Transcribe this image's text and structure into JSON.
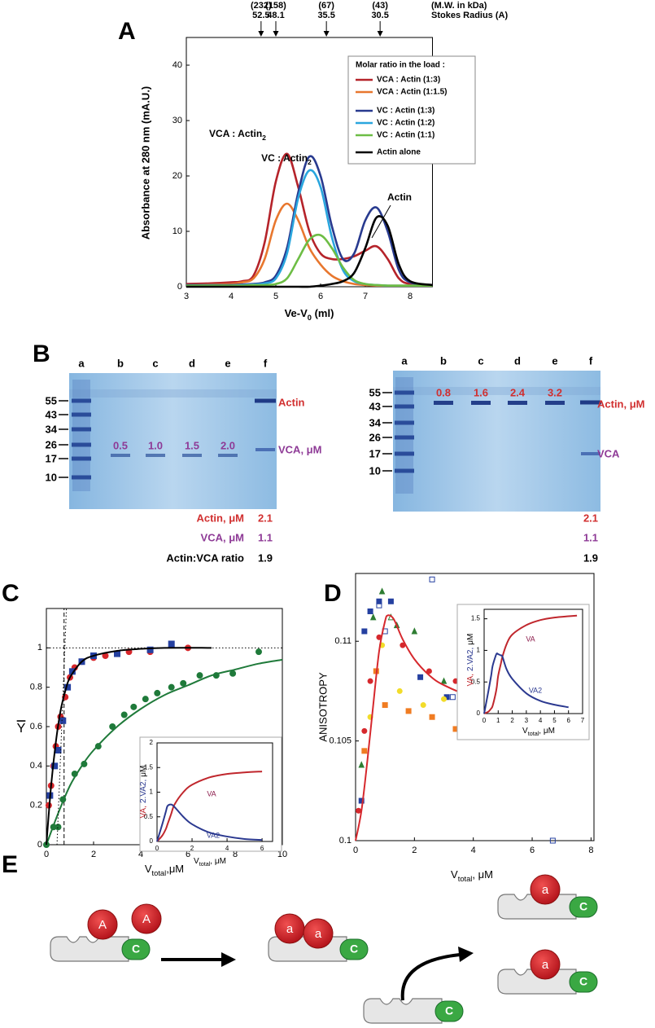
{
  "panel_labels": [
    "A",
    "B",
    "C",
    "D",
    "E"
  ],
  "chart_data": [
    {
      "type": "line",
      "xlabel": [
        "Ve-V",
        "0",
        " (ml)"
      ],
      "ylabel": "Absorbance at 280 nm  (mA.U.)",
      "top_axis_title": [
        "(M.W. in kDa)",
        "Stokes Radius (A)"
      ],
      "top_ticks": [
        {
          "value": 4.67,
          "label": [
            "(232)",
            "52.5"
          ]
        },
        {
          "value": 5.0,
          "label": [
            "(158)",
            "48.1"
          ]
        },
        {
          "value": 6.13,
          "label": [
            "(67)",
            "35.5"
          ]
        },
        {
          "value": 7.33,
          "label": [
            "(43)",
            "30.5"
          ]
        }
      ],
      "xlim": [
        3,
        8.5
      ],
      "ylim": [
        0,
        45
      ],
      "xticks": [
        3,
        4,
        5,
        6,
        7,
        8
      ],
      "yticks": [
        0,
        10,
        20,
        30,
        40
      ],
      "legend": {
        "title": "Molar ratio in the load :",
        "position": "upper right"
      },
      "x": [
        3,
        3.5,
        4,
        4.25,
        4.5,
        4.75,
        5,
        5.25,
        5.5,
        5.75,
        6,
        6.25,
        6.5,
        6.75,
        7,
        7.25,
        7.5,
        7.75,
        8,
        8.5
      ],
      "series": [
        {
          "name": "VCA : Actin (1:3)",
          "color": "#b5232a",
          "values": [
            0.5,
            0.6,
            0.8,
            1,
            2,
            8,
            19,
            24,
            18,
            10,
            6,
            5,
            5,
            5.5,
            6.5,
            7.3,
            5,
            1.5,
            0.5,
            0.3
          ]
        },
        {
          "name": "VCA : Actin (1:1.5)",
          "color": "#e8772e",
          "values": [
            0.3,
            0.4,
            0.5,
            0.8,
            1.5,
            5,
            12,
            15,
            12,
            7,
            4,
            2,
            1,
            0.5,
            0.3,
            0.2,
            0.2,
            0.2,
            0.2,
            0.2
          ]
        },
        {
          "name": "VC : Actin (1:3)",
          "color": "#283a8f",
          "values": [
            0.3,
            0.3,
            0.3,
            0.4,
            0.5,
            0.8,
            2,
            7,
            17,
            23.5,
            20,
            11,
            5,
            6,
            12,
            14.3,
            10,
            3,
            0.8,
            0.3
          ]
        },
        {
          "name": "VC : Actin (1:2)",
          "color": "#2aa6de",
          "values": [
            0.2,
            0.2,
            0.2,
            0.3,
            0.4,
            0.6,
            1.5,
            6,
            16,
            21,
            18,
            9,
            3,
            1,
            0.5,
            0.3,
            0.2,
            0.2,
            0.2,
            0.2
          ]
        },
        {
          "name": "VC : Actin (1:1)",
          "color": "#6dbd45",
          "values": [
            0.2,
            0.2,
            0.2,
            0.2,
            0.3,
            0.3,
            0.5,
            1.5,
            5,
            8.5,
            9.3,
            7,
            3.5,
            1.2,
            0.5,
            0.3,
            0.2,
            0.2,
            0.2,
            0.2
          ]
        },
        {
          "name": "Actin alone",
          "color": "#000000",
          "values": [
            0,
            0,
            0,
            0,
            0,
            0,
            0,
            0,
            0,
            0,
            0.2,
            0.5,
            1,
            2.5,
            7,
            12.5,
            11,
            4,
            1,
            0.3
          ]
        }
      ],
      "annotations": [
        {
          "text": [
            "VCA : Actin",
            "2"
          ]
        },
        {
          "text": [
            "VC : Actin",
            "2"
          ]
        },
        {
          "text": "Actin"
        }
      ]
    },
    {
      "type": "scatter",
      "xlabel": [
        "V",
        "total",
        ",μM"
      ],
      "ylabel": "Y",
      "ylabel_overline": true,
      "xlim": [
        0,
        10
      ],
      "ylim": [
        0,
        1.2
      ],
      "xticks": [
        0,
        2,
        4,
        6,
        8,
        10
      ],
      "yticks": [
        0,
        0.2,
        0.4,
        0.6,
        0.8,
        1
      ],
      "reference_lines": [
        {
          "axis": "y",
          "value": 1,
          "dash": "dotted"
        },
        {
          "axis": "x",
          "value": 0.75,
          "dash": "dashed"
        }
      ],
      "series": [
        {
          "color": "#d7262b",
          "marker": "circle",
          "x": [
            0.1,
            0.2,
            0.3,
            0.4,
            0.5,
            0.6,
            0.8,
            1,
            1.2,
            1.5,
            2,
            2.5,
            3.5,
            4.4,
            6
          ],
          "values": [
            0.2,
            0.3,
            0.4,
            0.5,
            0.6,
            0.65,
            0.75,
            0.85,
            0.9,
            0.93,
            0.95,
            0.96,
            0.98,
            0.98,
            1.0
          ]
        },
        {
          "color": "#2540a0",
          "marker": "square",
          "x": [
            0.15,
            0.35,
            0.5,
            0.7,
            0.9,
            1.1,
            1.5,
            2,
            3,
            4.4,
            5.3
          ],
          "values": [
            0.25,
            0.4,
            0.48,
            0.63,
            0.8,
            0.88,
            0.93,
            0.96,
            0.97,
            0.99,
            1.02
          ]
        },
        {
          "color": "#1f7a3a",
          "marker": "circle",
          "x": [
            0,
            0.3,
            0.5,
            0.7,
            1.2,
            1.6,
            2.2,
            2.8,
            3.3,
            3.7,
            4.2,
            4.7,
            5.3,
            5.8,
            6.5,
            7.2,
            7.9,
            9
          ],
          "values": [
            0,
            0.09,
            0.09,
            0.23,
            0.36,
            0.41,
            0.5,
            0.6,
            0.66,
            0.7,
            0.74,
            0.77,
            0.8,
            0.82,
            0.86,
            0.86,
            0.87,
            0.98
          ]
        },
        {
          "color": "#1f7a3a",
          "mode": "line",
          "x": [
            0,
            0.5,
            1,
            1.5,
            2,
            3,
            4,
            5,
            6,
            7,
            8,
            9,
            10
          ],
          "values": [
            0,
            0.16,
            0.3,
            0.4,
            0.48,
            0.6,
            0.69,
            0.76,
            0.81,
            0.86,
            0.89,
            0.92,
            0.94
          ]
        },
        {
          "color": "#000000",
          "mode": "line",
          "x": [
            0,
            0.2,
            0.4,
            0.6,
            0.8,
            1,
            1.5,
            2,
            3,
            4,
            5,
            7
          ],
          "values": [
            0,
            0.3,
            0.52,
            0.68,
            0.78,
            0.85,
            0.93,
            0.96,
            0.985,
            0.995,
            1,
            1
          ]
        },
        {
          "color": "#000000",
          "mode": "line",
          "dash": "dotted",
          "x": [
            0.45,
            0.85
          ],
          "values": [
            0,
            1.2
          ]
        }
      ]
    },
    {
      "type": "line",
      "xlabel": [
        "V",
        "total",
        ", μM"
      ],
      "ylabel": [
        {
          "text": "VA,",
          "color": "#c0272d"
        },
        {
          "text": "2.VA2,",
          "color": "#2b3990"
        },
        {
          "text": "μM",
          "color": "#000000"
        }
      ],
      "xlim": [
        0,
        6.6
      ],
      "ylim": [
        0,
        2
      ],
      "xticks": [
        0,
        2,
        4,
        6
      ],
      "yticks": [
        0,
        0.5,
        1,
        1.5,
        2
      ],
      "x": [
        0,
        0.3,
        0.5,
        0.6,
        0.8,
        1,
        1.5,
        2,
        3,
        4,
        5,
        6
      ],
      "series": [
        {
          "color": "#c0272d",
          "values": [
            0,
            0.12,
            0.25,
            0.35,
            0.55,
            0.75,
            1.0,
            1.15,
            1.3,
            1.37,
            1.4,
            1.42
          ]
        },
        {
          "color": "#2b3990",
          "values": [
            0,
            0.35,
            0.6,
            0.72,
            0.75,
            0.7,
            0.5,
            0.35,
            0.18,
            0.1,
            0.05,
            0.03
          ]
        }
      ],
      "annotations": [
        {
          "text": "VA",
          "color": "#8b1a4a"
        },
        {
          "text": "VA2",
          "color": "#2b3990"
        }
      ]
    },
    {
      "type": "scatter",
      "xlabel": [
        "V",
        "total",
        ", μM"
      ],
      "ylabel": "ANISOTROPY",
      "xlim": [
        0,
        8.1
      ],
      "ylim": [
        0.1,
        0.1134
      ],
      "xticks": [
        0,
        2,
        4,
        6,
        8
      ],
      "yticks": [
        0.1,
        0.105,
        0.11
      ],
      "series": [
        {
          "color": "#2540a0",
          "marker": "square",
          "x": [
            0.2,
            0.3,
            0.5,
            0.8,
            1.2,
            2.2,
            3.1,
            4.5
          ],
          "values": [
            0.102,
            0.1105,
            0.1115,
            0.112,
            0.112,
            0.1082,
            0.1072,
            0.1072
          ]
        },
        {
          "color": "#d6282d",
          "marker": "circle",
          "x": [
            0.1,
            0.3,
            0.5,
            0.8,
            1.6,
            2.5,
            3.4,
            4.8
          ],
          "values": [
            0.1015,
            0.1055,
            0.108,
            0.1102,
            0.1098,
            0.1085,
            0.108,
            0.1072
          ]
        },
        {
          "color": "#2e7d32",
          "marker": "triangle",
          "x": [
            0.2,
            0.6,
            0.9,
            1.4,
            2,
            3,
            4.6
          ],
          "values": [
            0.1038,
            0.1112,
            0.1125,
            0.1108,
            0.1105,
            0.108,
            0.1062
          ]
        },
        {
          "color": "#f07c22",
          "marker": "square",
          "x": [
            0.3,
            0.7,
            1,
            1.8,
            2.6,
            3.4,
            4.2
          ],
          "values": [
            0.1045,
            0.1085,
            0.1068,
            0.1065,
            0.1062,
            0.1056,
            0.1058
          ]
        },
        {
          "color": "#f2dc2a",
          "marker": "circle",
          "x": [
            0.5,
            0.9,
            1.5,
            2.3,
            3,
            3.8
          ],
          "values": [
            0.1062,
            0.1098,
            0.1075,
            0.1068,
            0.1071,
            0.1074
          ]
        },
        {
          "color": "#2540a0",
          "marker": "square",
          "filled": false,
          "x": [
            0.8,
            1,
            2.6,
            3.3,
            6.7
          ],
          "values": [
            0.1118,
            0.1105,
            0.1131,
            0.1072,
            0.1
          ]
        },
        {
          "color": "#2e7d32",
          "marker": "triangle",
          "filled": false,
          "x": [
            1.2,
            3.9
          ],
          "values": [
            0.1112,
            0.1072
          ]
        },
        {
          "color": "#d6282d",
          "mode": "line",
          "x": [
            0,
            0.2,
            0.4,
            0.6,
            0.8,
            1,
            1.1,
            1.3,
            1.6,
            2,
            2.5,
            3,
            4,
            5,
            6,
            6.6
          ],
          "values": [
            0.1,
            0.1015,
            0.104,
            0.1068,
            0.1095,
            0.111,
            0.1113,
            0.1111,
            0.1101,
            0.1091,
            0.1083,
            0.1078,
            0.1072,
            0.1069,
            0.1067,
            0.1066
          ]
        }
      ]
    },
    {
      "type": "line",
      "xlabel": [
        "V",
        "total",
        ", μM"
      ],
      "ylabel": [
        {
          "text": "VA,",
          "color": "#c0272d"
        },
        {
          "text": "2.VA2,",
          "color": "#2b3990"
        },
        {
          "text": "μM",
          "color": "#000000"
        }
      ],
      "xlim": [
        0,
        7
      ],
      "ylim": [
        0,
        1.65
      ],
      "xticks": [
        0,
        1,
        2,
        3,
        4,
        5,
        6,
        7
      ],
      "yticks": [
        0,
        0.5,
        1,
        1.5
      ],
      "x": [
        0,
        0.3,
        0.5,
        0.6,
        0.8,
        0.9,
        1,
        1.2,
        1.3,
        1.6,
        2,
        3,
        4,
        5,
        6,
        6.6
      ],
      "series": [
        {
          "color": "#c0272d",
          "values": [
            0,
            0.03,
            0.08,
            0.12,
            0.3,
            0.42,
            0.6,
            0.8,
            0.9,
            1.1,
            1.25,
            1.4,
            1.48,
            1.52,
            1.54,
            1.55
          ]
        },
        {
          "color": "#2b3990",
          "values": [
            0,
            0.35,
            0.6,
            0.75,
            0.9,
            0.95,
            0.94,
            0.92,
            0.9,
            0.7,
            0.55,
            0.32,
            0.2,
            0.14,
            0.1,
            null
          ]
        }
      ],
      "annotations": [
        {
          "text": "VA",
          "color": "#8b1a4a"
        },
        {
          "text": "VA2",
          "color": "#2b3990"
        }
      ]
    }
  ],
  "panel_b": {
    "lanes": [
      "a",
      "b",
      "c",
      "d",
      "e",
      "f"
    ],
    "ladder": [
      "55",
      "43",
      "34",
      "26",
      "17",
      "10"
    ],
    "left": {
      "concentrations": [
        "0.5",
        "1.0",
        "1.5",
        "2.0"
      ],
      "actin_label": "Actin",
      "vca_label": "VCA, μM"
    },
    "right": {
      "concentrations": [
        "0.8",
        "1.6",
        "2.4",
        "3.2"
      ],
      "actin_label": "Actin, μM",
      "vca_label": "VCA"
    },
    "summary": {
      "labels": [
        "Actin, μM",
        "VCA, μM",
        "Actin:VCA ratio"
      ],
      "left": [
        "2.1",
        "1.1",
        "1.9"
      ],
      "right": [
        "2.1",
        "1.1",
        "1.9"
      ]
    }
  },
  "panel_e": {
    "labels": [
      "A",
      "A",
      "C",
      "a",
      "a",
      "C",
      "C",
      "a",
      "C",
      "a",
      "C"
    ]
  }
}
